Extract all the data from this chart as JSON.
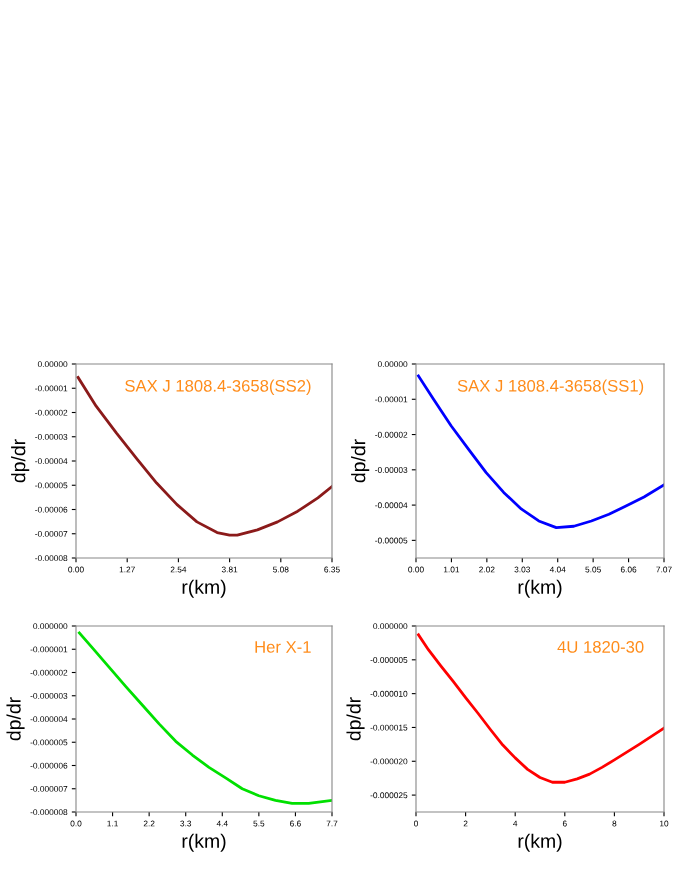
{
  "chart_data": [
    {
      "type": "line",
      "xlabel": "r(km)",
      "ylabel": "dp/dr",
      "annotations": [
        "SAX J 1808.4-3658(SS2)"
      ],
      "series": [
        {
          "color": "#8b1a1a",
          "x": [
            0.05,
            0.5,
            1.0,
            1.5,
            2.0,
            2.5,
            3.0,
            3.5,
            3.81,
            4.0,
            4.5,
            5.0,
            5.5,
            6.0,
            6.35
          ],
          "values": [
            -5.5e-06,
            -1.74e-05,
            -2.84e-05,
            -3.89e-05,
            -4.91e-05,
            -5.79e-05,
            -6.51e-05,
            -6.95e-05,
            -7.06e-05,
            -7.06e-05,
            -6.84e-05,
            -6.51e-05,
            -6.07e-05,
            -5.52e-05,
            -5.05e-05
          ]
        }
      ],
      "xlim": [
        0,
        6.35
      ],
      "xticks": [
        {
          "value": 0,
          "label": "0.00"
        },
        {
          "value": 1.27,
          "label": "1.27"
        },
        {
          "value": 2.54,
          "label": "2.54"
        },
        {
          "value": 3.81,
          "label": "3.81"
        },
        {
          "value": 5.08,
          "label": "5.08"
        },
        {
          "value": 6.35,
          "label": "6.35"
        }
      ],
      "ylim": [
        -8e-05,
        0
      ],
      "yticks": [
        {
          "value": 0,
          "label": "0.00000"
        },
        {
          "value": -1e-05,
          "label": "-0.00001"
        },
        {
          "value": -2e-05,
          "label": "-0.00002"
        },
        {
          "value": -3e-05,
          "label": "-0.00003"
        },
        {
          "value": -4e-05,
          "label": "-0.00004"
        },
        {
          "value": -5e-05,
          "label": "-0.00005"
        },
        {
          "value": -6e-05,
          "label": "-0.00006"
        },
        {
          "value": -7e-05,
          "label": "-0.00007"
        },
        {
          "value": -8e-05,
          "label": "-0.00008"
        }
      ]
    },
    {
      "type": "line",
      "xlabel": "r(km)",
      "ylabel": "dp/dr",
      "annotations": [
        "SAX J 1808.4-3658(SS1)"
      ],
      "series": [
        {
          "color": "#0000ff",
          "x": [
            0.07,
            0.5,
            1.0,
            1.5,
            2.0,
            2.5,
            3.0,
            3.5,
            4.0,
            4.5,
            5.0,
            5.5,
            6.0,
            6.5,
            7.07
          ],
          "values": [
            -3.4e-06,
            -1e-05,
            -1.75e-05,
            -2.42e-05,
            -3.08e-05,
            -3.64e-05,
            -4.11e-05,
            -4.45e-05,
            -4.64e-05,
            -4.6e-05,
            -4.45e-05,
            -4.26e-05,
            -4.02e-05,
            -3.77e-05,
            -3.43e-05
          ]
        }
      ],
      "xlim": [
        0,
        7.07
      ],
      "xticks": [
        {
          "value": 0,
          "label": "0.00"
        },
        {
          "value": 1.01,
          "label": "1.01"
        },
        {
          "value": 2.02,
          "label": "2.02"
        },
        {
          "value": 3.03,
          "label": "3.03"
        },
        {
          "value": 4.04,
          "label": "4.04"
        },
        {
          "value": 5.05,
          "label": "5.05"
        },
        {
          "value": 6.06,
          "label": "6.06"
        },
        {
          "value": 7.07,
          "label": "7.07"
        }
      ],
      "ylim": [
        -5.5e-05,
        0
      ],
      "yticks": [
        {
          "value": 0,
          "label": "0.00000"
        },
        {
          "value": -1e-05,
          "label": "-0.00001"
        },
        {
          "value": -2e-05,
          "label": "-0.00002"
        },
        {
          "value": -3e-05,
          "label": "-0.00003"
        },
        {
          "value": -4e-05,
          "label": "-0.00004"
        },
        {
          "value": -5e-05,
          "label": "-0.00005"
        }
      ]
    },
    {
      "type": "line",
      "xlabel": "r(km)",
      "ylabel": "dp/dr",
      "annotations": [
        "Her X-1"
      ],
      "series": [
        {
          "color": "#00e000",
          "x": [
            0.1,
            0.5,
            1.0,
            1.5,
            2.0,
            2.5,
            3.0,
            3.5,
            4.0,
            4.5,
            5.0,
            5.5,
            6.0,
            6.5,
            7.0,
            7.7
          ],
          "values": [
            -3e-07,
            -9.5e-07,
            -1.78e-06,
            -2.61e-06,
            -3.41e-06,
            -4.21e-06,
            -4.96e-06,
            -5.55e-06,
            -6.08e-06,
            -6.53e-06,
            -7e-06,
            -7.3e-06,
            -7.5e-06,
            -7.63e-06,
            -7.63e-06,
            -7.5e-06
          ]
        }
      ],
      "xlim": [
        0,
        7.7
      ],
      "xticks": [
        {
          "value": 0,
          "label": "0.0"
        },
        {
          "value": 1.1,
          "label": "1.1"
        },
        {
          "value": 2.2,
          "label": "2.2"
        },
        {
          "value": 3.3,
          "label": "3.3"
        },
        {
          "value": 4.4,
          "label": "4.4"
        },
        {
          "value": 5.5,
          "label": "5.5"
        },
        {
          "value": 6.6,
          "label": "6.6"
        },
        {
          "value": 7.7,
          "label": "7.7"
        }
      ],
      "ylim": [
        -8e-06,
        0
      ],
      "yticks": [
        {
          "value": 0,
          "label": "0.000000"
        },
        {
          "value": -1e-06,
          "label": "-0.000001"
        },
        {
          "value": -2e-06,
          "label": "-0.000002"
        },
        {
          "value": -3e-06,
          "label": "-0.000003"
        },
        {
          "value": -4e-06,
          "label": "-0.000004"
        },
        {
          "value": -5e-06,
          "label": "-0.000005"
        },
        {
          "value": -6e-06,
          "label": "-0.000006"
        },
        {
          "value": -7e-06,
          "label": "-0.000007"
        },
        {
          "value": -8e-06,
          "label": "-0.000008"
        }
      ]
    },
    {
      "type": "line",
      "xlabel": "r(km)",
      "ylabel": "dp/dr",
      "annotations": [
        "4U 1820-30"
      ],
      "series": [
        {
          "color": "#ff0000",
          "x": [
            0.1,
            0.5,
            1,
            1.5,
            2,
            2.5,
            3,
            3.5,
            4,
            4.5,
            5,
            5.5,
            6,
            6.5,
            7,
            7.5,
            8,
            9,
            10
          ],
          "values": [
            -1.3e-06,
            -3.5e-06,
            -5.9e-06,
            -8.2e-06,
            -1.06e-05,
            -1.29e-05,
            -1.53e-05,
            -1.76e-05,
            -1.95e-05,
            -2.12e-05,
            -2.24e-05,
            -2.31e-05,
            -2.31e-05,
            -2.26e-05,
            -2.19e-05,
            -2.09e-05,
            -1.98e-05,
            -1.75e-05,
            -1.51e-05
          ]
        }
      ],
      "xlim": [
        0,
        10
      ],
      "xticks": [
        0,
        2,
        4,
        6,
        8,
        10
      ],
      "ylim": [
        -2.75e-05,
        0
      ],
      "yticks": [
        {
          "value": 0,
          "label": "0.000000"
        },
        {
          "value": -5e-06,
          "label": "-0.000005"
        },
        {
          "value": -1e-05,
          "label": "-0.000010"
        },
        {
          "value": -1.5e-05,
          "label": "-0.000015"
        },
        {
          "value": -2e-05,
          "label": "-0.000020"
        },
        {
          "value": -2.5e-05,
          "label": "-0.000025"
        }
      ]
    }
  ]
}
